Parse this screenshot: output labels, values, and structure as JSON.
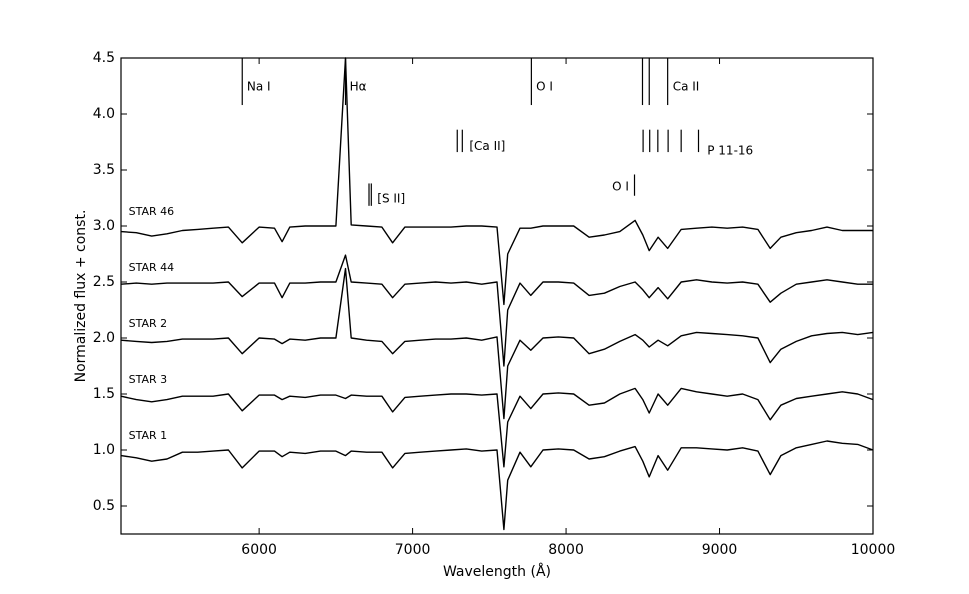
{
  "chart_data": {
    "type": "line",
    "xlabel": "Wavelength (Å)",
    "ylabel": "Normalized flux + const.",
    "xlim": [
      5100,
      10000
    ],
    "ylim": [
      0.25,
      4.5
    ],
    "grid": false,
    "x_ticks": [
      6000,
      7000,
      8000,
      9000,
      10000
    ],
    "x_tick_labels": [
      "6000",
      "7000",
      "8000",
      "9000",
      "10000"
    ],
    "y_ticks": [
      0.5,
      1.0,
      1.5,
      2.0,
      2.5,
      3.0,
      3.5,
      4.0,
      4.5
    ],
    "y_tick_labels": [
      "0.5",
      "1.0",
      "1.5",
      "2.0",
      "2.5",
      "3.0",
      "3.5",
      "4.0",
      "4.5"
    ],
    "line_color": "#000000",
    "x": [
      5100,
      5200,
      5300,
      5400,
      5500,
      5600,
      5700,
      5800,
      5890,
      6000,
      6100,
      6150,
      6200,
      6300,
      6400,
      6500,
      6563,
      6600,
      6700,
      6800,
      6870,
      6950,
      7050,
      7150,
      7250,
      7350,
      7450,
      7550,
      7595,
      7620,
      7700,
      7770,
      7850,
      7950,
      8050,
      8150,
      8250,
      8350,
      8450,
      8500,
      8542,
      8600,
      8662,
      8750,
      8850,
      8950,
      9050,
      9150,
      9250,
      9330,
      9400,
      9500,
      9600,
      9700,
      9800,
      9900,
      10000
    ],
    "series": [
      {
        "name": "STAR 46",
        "values": [
          2.95,
          2.94,
          2.91,
          2.93,
          2.96,
          2.97,
          2.98,
          2.99,
          2.85,
          2.99,
          2.98,
          2.86,
          2.99,
          3.0,
          3.0,
          3.0,
          4.5,
          3.01,
          3.0,
          2.99,
          2.85,
          2.99,
          2.99,
          2.99,
          2.99,
          3.0,
          3.0,
          2.99,
          2.3,
          2.75,
          2.98,
          2.98,
          3.0,
          3.0,
          3.0,
          2.9,
          2.92,
          2.95,
          3.05,
          2.92,
          2.78,
          2.9,
          2.8,
          2.97,
          2.98,
          2.99,
          2.98,
          2.99,
          2.97,
          2.8,
          2.9,
          2.94,
          2.96,
          2.99,
          2.96,
          2.96,
          2.96
        ]
      },
      {
        "name": "STAR 44",
        "values": [
          2.48,
          2.49,
          2.48,
          2.49,
          2.49,
          2.49,
          2.49,
          2.5,
          2.37,
          2.49,
          2.49,
          2.36,
          2.49,
          2.49,
          2.5,
          2.5,
          2.74,
          2.5,
          2.49,
          2.48,
          2.36,
          2.48,
          2.49,
          2.5,
          2.49,
          2.5,
          2.48,
          2.5,
          1.75,
          2.25,
          2.49,
          2.38,
          2.5,
          2.5,
          2.49,
          2.38,
          2.4,
          2.46,
          2.5,
          2.43,
          2.36,
          2.45,
          2.35,
          2.5,
          2.52,
          2.5,
          2.49,
          2.5,
          2.48,
          2.32,
          2.4,
          2.48,
          2.5,
          2.52,
          2.5,
          2.48,
          2.48
        ]
      },
      {
        "name": "STAR 2",
        "values": [
          1.98,
          1.97,
          1.96,
          1.97,
          1.99,
          1.99,
          1.99,
          2.0,
          1.86,
          2.0,
          1.99,
          1.95,
          1.99,
          1.98,
          2.0,
          2.0,
          2.62,
          2.0,
          1.98,
          1.97,
          1.86,
          1.97,
          1.98,
          1.99,
          1.99,
          2.0,
          1.98,
          2.01,
          1.28,
          1.75,
          1.98,
          1.89,
          2.0,
          2.01,
          2.0,
          1.86,
          1.9,
          1.97,
          2.03,
          1.98,
          1.92,
          1.98,
          1.93,
          2.02,
          2.05,
          2.04,
          2.03,
          2.02,
          2.0,
          1.78,
          1.9,
          1.97,
          2.02,
          2.04,
          2.05,
          2.03,
          2.05
        ]
      },
      {
        "name": "STAR 3",
        "values": [
          1.48,
          1.45,
          1.43,
          1.45,
          1.48,
          1.48,
          1.48,
          1.5,
          1.35,
          1.49,
          1.49,
          1.45,
          1.48,
          1.47,
          1.49,
          1.49,
          1.46,
          1.49,
          1.48,
          1.48,
          1.34,
          1.47,
          1.48,
          1.49,
          1.5,
          1.5,
          1.49,
          1.5,
          0.85,
          1.25,
          1.48,
          1.37,
          1.5,
          1.51,
          1.5,
          1.4,
          1.42,
          1.5,
          1.55,
          1.45,
          1.33,
          1.5,
          1.4,
          1.55,
          1.52,
          1.5,
          1.48,
          1.5,
          1.45,
          1.27,
          1.4,
          1.46,
          1.48,
          1.5,
          1.52,
          1.5,
          1.45
        ]
      },
      {
        "name": "STAR 1",
        "values": [
          0.95,
          0.93,
          0.9,
          0.92,
          0.98,
          0.98,
          0.99,
          1.0,
          0.84,
          0.99,
          0.99,
          0.94,
          0.98,
          0.97,
          0.99,
          0.99,
          0.95,
          0.99,
          0.98,
          0.98,
          0.84,
          0.97,
          0.98,
          0.99,
          1.0,
          1.01,
          0.99,
          1.0,
          0.29,
          0.73,
          0.98,
          0.85,
          1.0,
          1.01,
          1.0,
          0.92,
          0.94,
          0.99,
          1.03,
          0.9,
          0.76,
          0.95,
          0.82,
          1.02,
          1.02,
          1.01,
          1.0,
          1.02,
          0.99,
          0.78,
          0.95,
          1.02,
          1.05,
          1.08,
          1.06,
          1.05,
          1.0
        ]
      }
    ],
    "series_labels": [
      {
        "text": "STAR 46",
        "x": 5150,
        "y": 3.1
      },
      {
        "text": "STAR 44",
        "x": 5150,
        "y": 2.6
      },
      {
        "text": "STAR 2",
        "x": 5150,
        "y": 2.1
      },
      {
        "text": "STAR 3",
        "x": 5150,
        "y": 1.6
      },
      {
        "text": "STAR 1",
        "x": 5150,
        "y": 1.1
      }
    ],
    "line_markers": [
      {
        "label": "Na I",
        "lines": [
          5890
        ],
        "y_top": 4.5,
        "y_bottom": 4.08,
        "label_x": 5920,
        "label_y": 4.24
      },
      {
        "label": "Hα",
        "lines": [
          6563
        ],
        "y_top": 4.5,
        "y_bottom": 4.08,
        "label_x": 6590,
        "label_y": 4.24
      },
      {
        "label": "O I",
        "lines": [
          7774
        ],
        "y_top": 4.5,
        "y_bottom": 4.08,
        "label_x": 7805,
        "label_y": 4.24
      },
      {
        "label": "Ca II",
        "lines": [
          8498,
          8542,
          8662
        ],
        "y_top": 4.5,
        "y_bottom": 4.08,
        "label_x": 8695,
        "label_y": 4.24
      },
      {
        "label": "[Ca II]",
        "lines": [
          7291,
          7324
        ],
        "y_top": 3.86,
        "y_bottom": 3.66,
        "label_x": 7370,
        "label_y": 3.71
      },
      {
        "label": "P 11-16",
        "lines": [
          8502,
          8545,
          8598,
          8665,
          8750,
          8863
        ],
        "y_top": 3.86,
        "y_bottom": 3.66,
        "label_x": 8920,
        "label_y": 3.67
      },
      {
        "label": "O I",
        "lines": [
          8446
        ],
        "y_top": 3.46,
        "y_bottom": 3.27,
        "label_x": 8300,
        "label_y": 3.35
      },
      {
        "label": "[S II]",
        "lines": [
          6716,
          6731
        ],
        "y_top": 3.38,
        "y_bottom": 3.18,
        "label_x": 6770,
        "label_y": 3.24
      }
    ]
  }
}
